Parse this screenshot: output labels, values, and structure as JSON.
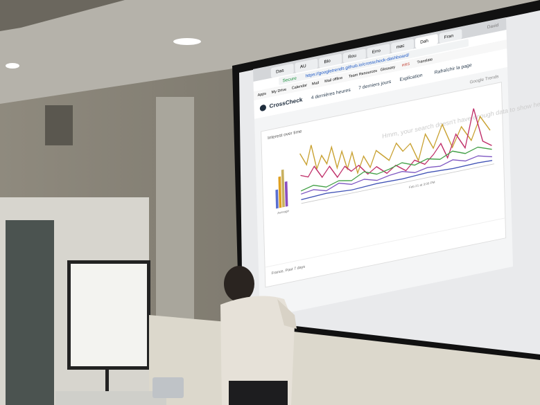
{
  "browser": {
    "tabs": [
      "Das",
      "AU",
      "Blo",
      "Rou",
      "Erro",
      "mac",
      "Dah",
      "Fran"
    ],
    "user": "David",
    "url": "https://googletrends.github.io/crosscheck-dashboard/",
    "secure": "Secure",
    "bookmarks": [
      "Apps",
      "My Drive",
      "Calendar",
      "Mail",
      "Mail offline",
      "Team Resources",
      "Glossary",
      "HRS",
      "Translate"
    ]
  },
  "page": {
    "brand": "CrossCheck",
    "nav": [
      "4 dernières heures",
      "7 derniers jours",
      "Explication",
      "Rafraîchir la page"
    ],
    "widget": {
      "source": "Google Trends",
      "title": "Interest over time",
      "message": "Hmm, your search doesn't have enough data to show here.",
      "x_label": "Feb 21 at 3:00 PM",
      "bar_label": "Average",
      "footer": "France, Past 7 days"
    }
  }
}
